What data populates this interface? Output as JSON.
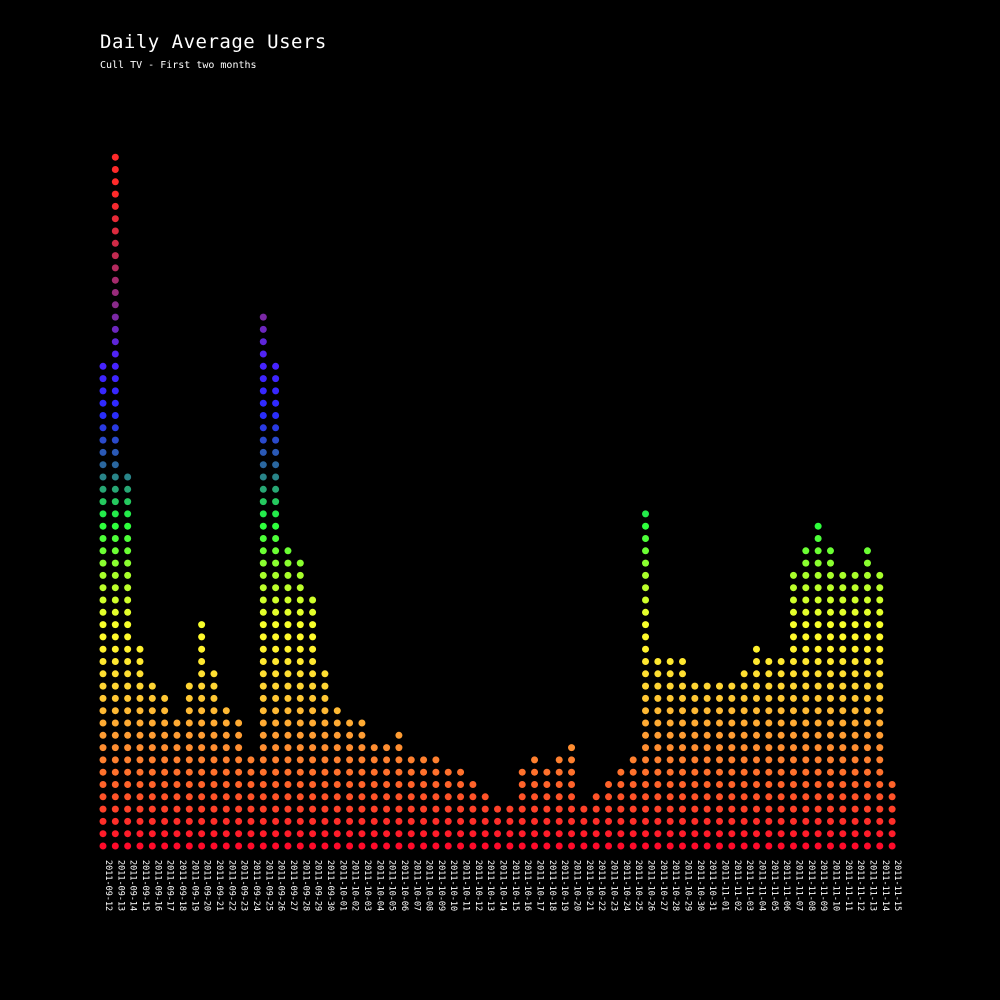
{
  "chart_data": {
    "type": "bar",
    "title": "Daily Average Users",
    "subtitle": "Cull TV - First two months",
    "xlabel": "",
    "ylabel": "",
    "categories": [
      "2011-09-12",
      "2011-09-13",
      "2011-09-14",
      "2011-09-15",
      "2011-09-16",
      "2011-09-17",
      "2011-09-18",
      "2011-09-19",
      "2011-09-20",
      "2011-09-21",
      "2011-09-22",
      "2011-09-23",
      "2011-09-24",
      "2011-09-25",
      "2011-09-26",
      "2011-09-27",
      "2011-09-28",
      "2011-09-29",
      "2011-09-30",
      "2011-10-01",
      "2011-10-02",
      "2011-10-03",
      "2011-10-04",
      "2011-10-05",
      "2011-10-06",
      "2011-10-07",
      "2011-10-08",
      "2011-10-09",
      "2011-10-10",
      "2011-10-11",
      "2011-10-12",
      "2011-10-13",
      "2011-10-14",
      "2011-10-15",
      "2011-10-16",
      "2011-10-17",
      "2011-10-18",
      "2011-10-19",
      "2011-10-20",
      "2011-10-21",
      "2011-10-22",
      "2011-10-23",
      "2011-10-24",
      "2011-10-25",
      "2011-10-26",
      "2011-10-27",
      "2011-10-28",
      "2011-10-29",
      "2011-10-30",
      "2011-10-31",
      "2011-11-01",
      "2011-11-02",
      "2011-11-03",
      "2011-11-04",
      "2011-11-05",
      "2011-11-06",
      "2011-11-07",
      "2011-11-08",
      "2011-11-09",
      "2011-11-10",
      "2011-11-11",
      "2011-11-12",
      "2011-11-13",
      "2011-11-14",
      "2011-11-15"
    ],
    "values": [
      40,
      57,
      31,
      17,
      14,
      13,
      11,
      14,
      19,
      15,
      12,
      11,
      8,
      44,
      40,
      25,
      24,
      21,
      15,
      12,
      11,
      11,
      9,
      9,
      10,
      8,
      8,
      8,
      7,
      7,
      6,
      5,
      4,
      4,
      7,
      8,
      7,
      8,
      9,
      4,
      5,
      6,
      7,
      8,
      28,
      16,
      16,
      16,
      14,
      14,
      14,
      14,
      15,
      17,
      16,
      16,
      23,
      25,
      27,
      25,
      23,
      23,
      25,
      23,
      6
    ],
    "colors": {
      "background": "#000000",
      "text": "#ffffff",
      "gradient": [
        "#ff0a2a",
        "#ff5a28",
        "#ff9a33",
        "#ffd833",
        "#ffff2a",
        "#a8ff2a",
        "#22ff3e",
        "#2a6a9a",
        "#2a2aff",
        "#4a22ff",
        "#8a2a8a",
        "#c82a4a",
        "#ff2a2a"
      ]
    }
  }
}
